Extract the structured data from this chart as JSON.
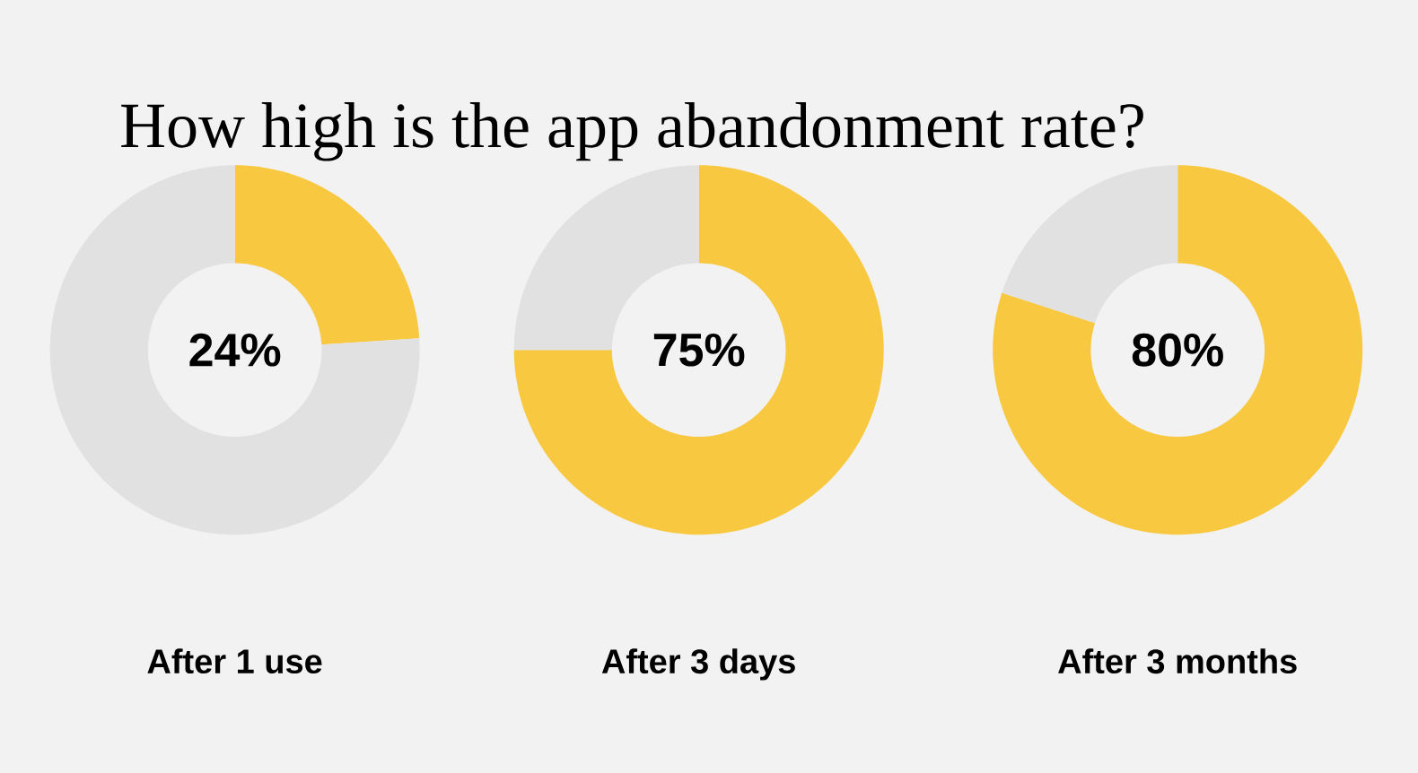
{
  "chart_data": [
    {
      "type": "donut",
      "title": "How high is the app abandonment rate?",
      "xlabel": "After 1 use",
      "categories": [
        null,
        null
      ],
      "values": [
        24,
        76
      ],
      "colors": [
        "#f8c841",
        "#e1e1e1"
      ],
      "value_labels": [
        "24%",
        null
      ]
    },
    {
      "type": "donut",
      "xlabel": "After 3 days",
      "categories": [
        null,
        null
      ],
      "values": [
        75,
        25
      ],
      "colors": [
        "#f8c841",
        "#e1e1e1"
      ],
      "value_labels": [
        "75%",
        null
      ]
    },
    {
      "type": "donut",
      "xlabel": "After 3 months",
      "categories": [
        null,
        null
      ],
      "values": [
        80,
        20
      ],
      "colors": [
        "#f8c841",
        "#e1e1e1"
      ],
      "value_labels": [
        "80%",
        null
      ]
    }
  ]
}
